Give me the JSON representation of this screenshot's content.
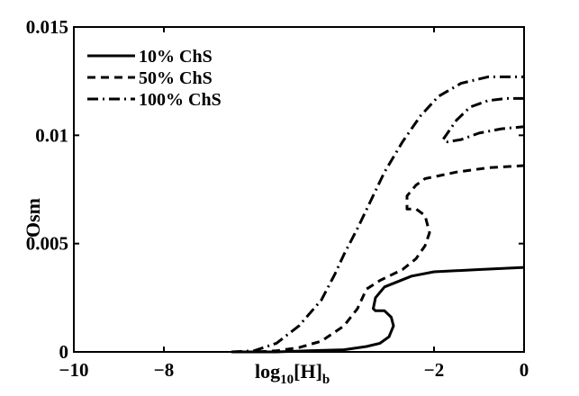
{
  "chart_data": {
    "type": "line",
    "xlabel": "log",
    "xlabel_sub": "10",
    "xlabel_bracket": "[H]",
    "xlabel_sub2": "b",
    "ylabel": "Osm",
    "xlim": [
      -10,
      0
    ],
    "ylim": [
      0,
      0.015
    ],
    "grid": false,
    "legend_position": "top-left",
    "x_ticks": [
      {
        "value": -10,
        "label": "−10"
      },
      {
        "value": -8,
        "label": "−8"
      },
      {
        "value": -2,
        "label": "−2"
      },
      {
        "value": 0,
        "label": "0"
      }
    ],
    "y_ticks": [
      {
        "value": 0,
        "label": "0"
      },
      {
        "value": 0.005,
        "label": "0.005"
      },
      {
        "value": 0.01,
        "label": "0.01"
      },
      {
        "value": 0.015,
        "label": "0.015"
      }
    ],
    "series": [
      {
        "name": "10% ChS",
        "style": "solid",
        "x": [
          -6.5,
          -5.5,
          -4.8,
          -4.0,
          -3.5,
          -3.2,
          -3.0,
          -2.9,
          -2.95,
          -3.1,
          -3.3,
          -3.35,
          -3.3,
          -3.1,
          -2.5,
          -2.0,
          -1.0,
          0.0
        ],
        "y": [
          0.0,
          0.0,
          5e-05,
          0.0001,
          0.00025,
          0.0004,
          0.0007,
          0.0012,
          0.0016,
          0.0019,
          0.0019,
          0.002,
          0.0025,
          0.003,
          0.0035,
          0.0037,
          0.0038,
          0.0039
        ]
      },
      {
        "name": "50% ChS",
        "style": "dashed",
        "x": [
          -6.5,
          -6.0,
          -5.5,
          -5.0,
          -4.5,
          -4.0,
          -3.7,
          -3.5,
          -3.2,
          -2.7,
          -2.4,
          -2.2,
          -2.1,
          -2.2,
          -2.4,
          -2.6,
          -2.6,
          -2.4,
          -2.2,
          -1.5,
          -0.8,
          0.0
        ],
        "y": [
          0.0,
          0.0,
          5e-05,
          0.0002,
          0.0005,
          0.0012,
          0.002,
          0.0029,
          0.0033,
          0.0038,
          0.0043,
          0.0049,
          0.0055,
          0.0063,
          0.0066,
          0.0066,
          0.0072,
          0.0077,
          0.008,
          0.0083,
          0.0085,
          0.0086
        ]
      },
      {
        "name": "100% ChS",
        "style": "dashdot",
        "x": [
          -6.5,
          -6.0,
          -5.5,
          -5.0,
          -4.5,
          -4.2,
          -4.0,
          -3.7,
          -3.4,
          -3.1,
          -2.7,
          -2.3,
          -1.9,
          -1.4,
          -0.8,
          0.0
        ],
        "y": [
          0.0,
          5e-05,
          0.0004,
          0.0012,
          0.0024,
          0.0036,
          0.0045,
          0.0057,
          0.007,
          0.0083,
          0.0097,
          0.0109,
          0.0118,
          0.0124,
          0.0127,
          0.0127
        ]
      },
      {
        "name": "",
        "style": "dashdot",
        "x": [
          0.0,
          -0.4,
          -0.8,
          -1.2,
          -1.5,
          -1.7,
          -1.8,
          -1.7,
          -1.4,
          -1.0,
          -0.5,
          0.0
        ],
        "y": [
          0.0117,
          0.0117,
          0.0116,
          0.0113,
          0.0107,
          0.0101,
          0.0098,
          0.0097,
          0.0098,
          0.0101,
          0.0103,
          0.0104
        ]
      }
    ]
  }
}
